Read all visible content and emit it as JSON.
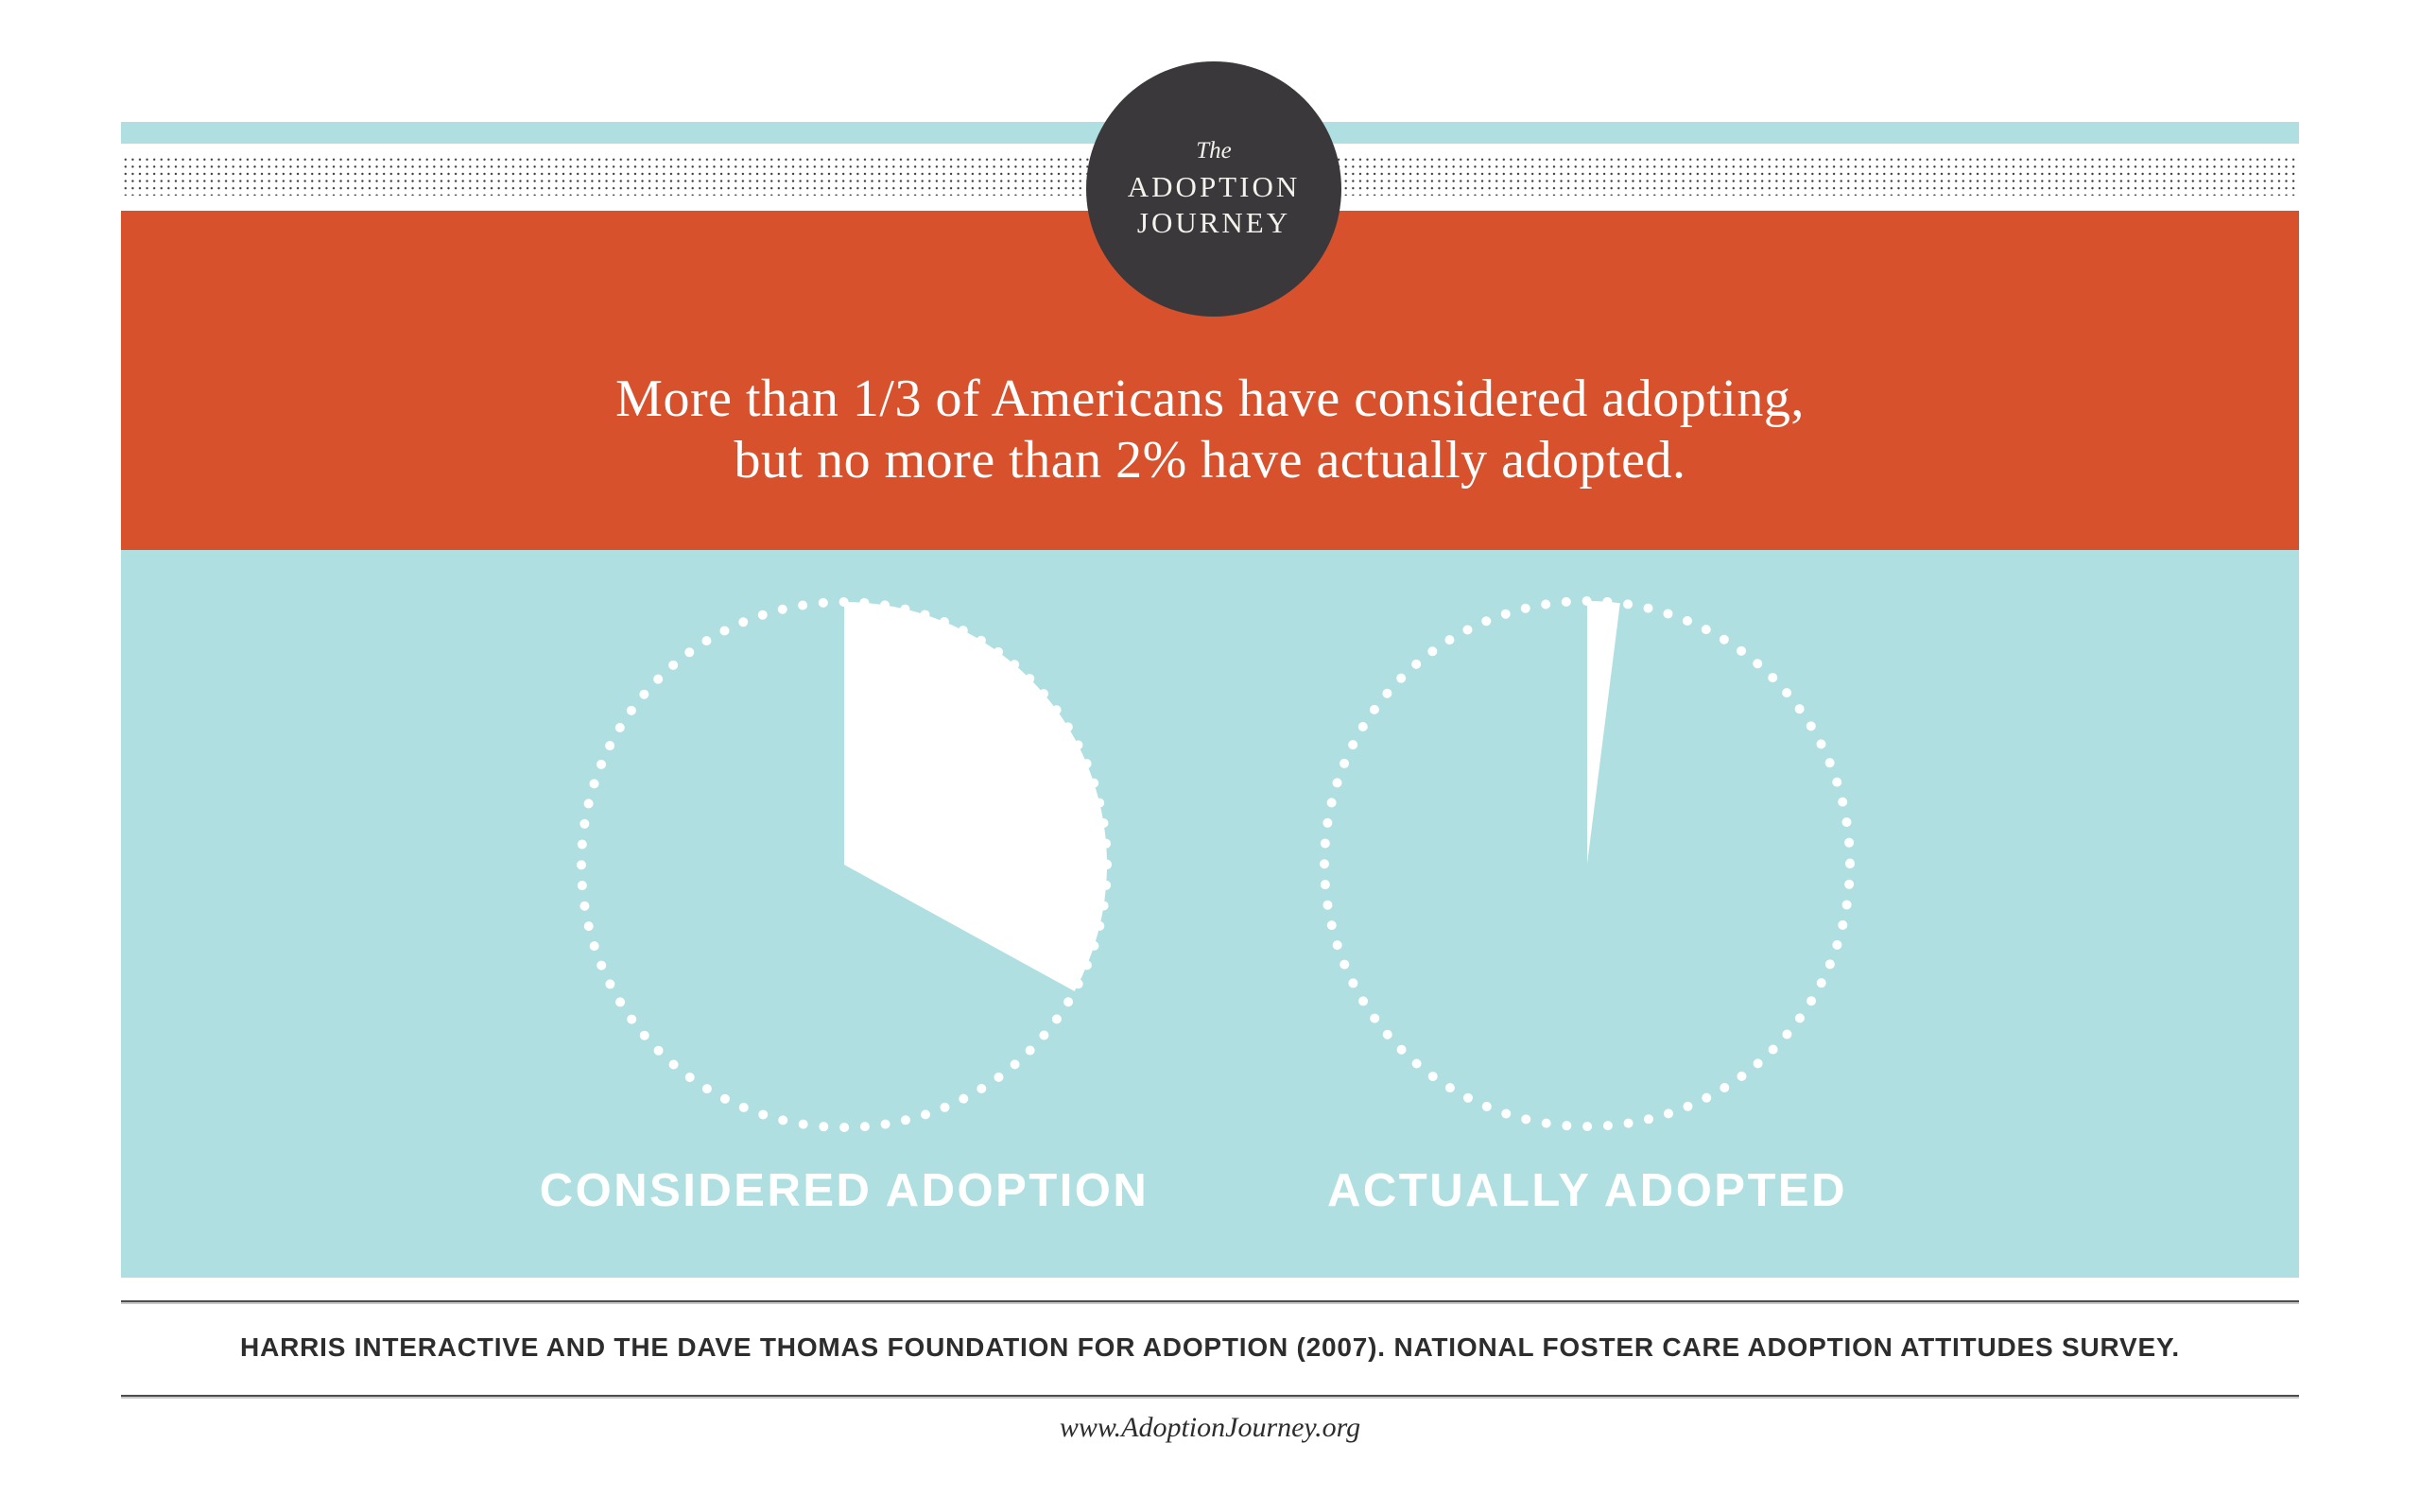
{
  "badge": {
    "pre_title": "The",
    "title_line1": "ADOPTION",
    "title_line2": "JOURNEY"
  },
  "banner": {
    "headline_line1": "More than 1/3 of Americans have considered adopting,",
    "headline_line2": "but no more than 2% have actually adopted."
  },
  "chart_data": {
    "type": "pie",
    "title": "More than 1/3 of Americans have considered adopting, but no more than 2% have actually adopted.",
    "style": "dotted white outline circles on light blue, solid white wedge starting at 12 o'clock going clockwise, no numeric labels on slices",
    "charts": [
      {
        "label": "CONSIDERED ADOPTION",
        "percent_highlighted": 33,
        "percent_remainder": 67,
        "described_as": "More than 1/3"
      },
      {
        "label": "ACTUALLY ADOPTED",
        "percent_highlighted": 2,
        "percent_remainder": 98,
        "described_as": "No more than 2%"
      }
    ]
  },
  "source": {
    "citation": "HARRIS INTERACTIVE AND THE DAVE THOMAS FOUNDATION FOR ADOPTION (2007). NATIONAL FOSTER CARE ADOPTION ATTITUDES SURVEY.",
    "website": "www.AdoptionJourney.org"
  },
  "colors": {
    "orange": "#d7512c",
    "light_blue": "#b0dfe1",
    "badge_dark": "#3a383a",
    "texture_dot": "#3d3d3d",
    "rule_gray": "#4d4d4d",
    "text_dark": "#2d2d2d",
    "page_bg": "#ffffff",
    "wedge_white": "#ffffff"
  }
}
